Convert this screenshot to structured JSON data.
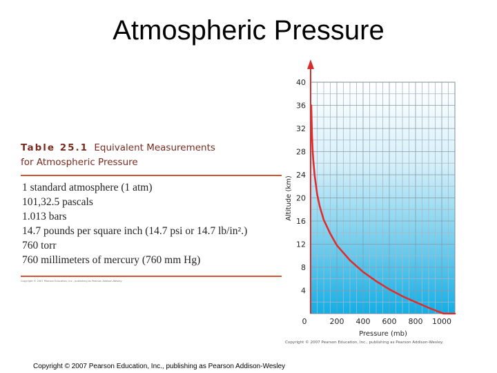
{
  "slide": {
    "title": "Atmospheric Pressure",
    "credit": "Copyright © 2007 Pearson Education, Inc., publishing as Pearson Addison-Wesley"
  },
  "table": {
    "number": "Table 25.1",
    "caption_line1": "Equivalent Measurements",
    "caption_line2": "for Atmospheric Pressure",
    "rows": [
      "1 standard atmosphere (1 atm)",
      "101,32.5 pascals",
      "1.013 bars",
      "14.7 pounds per square inch (14.7 psi or 14.7 lb/in².)",
      "760 torr",
      "760 millimeters of mercury (760 mm Hg)"
    ],
    "credit": "Copyright © 2007 Pearson Education, Inc., publishing as Pearson Addison-Wesley"
  },
  "chart_data": {
    "type": "line",
    "title": "",
    "xlabel": "Pressure (mb)",
    "ylabel": "Altitude (km)",
    "xlim": [
      0,
      1100
    ],
    "ylim": [
      0,
      40
    ],
    "x_ticks": [
      "0",
      "200",
      "400",
      "600",
      "800",
      "1000"
    ],
    "y_ticks": [
      "4",
      "8",
      "12",
      "16",
      "20",
      "24",
      "28",
      "32",
      "36",
      "40"
    ],
    "grid": true,
    "background": "gradient: white at top to cyan at bottom",
    "line_color": "#e02c2c",
    "series": [
      {
        "x": [
          1100,
          1013,
          900,
          800,
          700,
          600,
          500,
          400,
          300,
          200,
          150,
          100,
          70,
          50,
          30,
          20,
          15,
          10,
          5
        ],
        "y": [
          0,
          0,
          1.0,
          2.0,
          3.0,
          4.2,
          5.6,
          7.2,
          9.2,
          11.8,
          13.8,
          16.2,
          18.5,
          20.6,
          24.0,
          26.6,
          28.3,
          31.1,
          36.0
        ]
      }
    ],
    "credit": "Copyright © 2007 Pearson Education, Inc., publishing as Pearson Addison-Wesley."
  }
}
